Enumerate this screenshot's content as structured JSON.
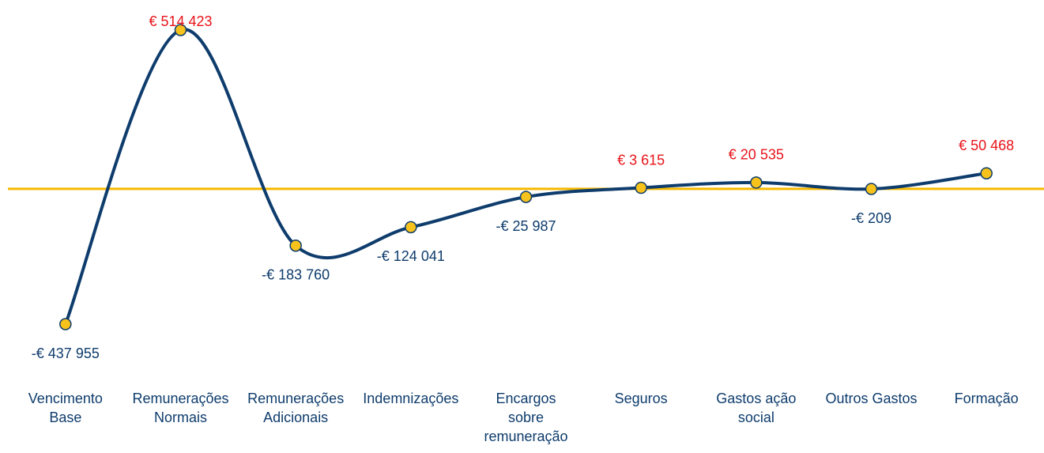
{
  "chart_data": {
    "type": "line",
    "categories": [
      "Vencimento\nBase",
      "Remunerações\nNormais",
      "Remunerações\nAdicionais",
      "Indemnizações",
      "Encargos\nsobre\nremuneração",
      "Seguros",
      "Gastos ação\nsocial",
      "Outros Gastos",
      "Formação"
    ],
    "values": [
      -437955,
      514423,
      -183760,
      -124041,
      -25987,
      3615,
      20535,
      -209,
      50468
    ],
    "value_labels": [
      "-€ 437 955",
      "€ 514 423",
      "-€ 183 760",
      "-€ 124 041",
      "-€ 25 987",
      "€ 3 615",
      "€ 20 535",
      "-€ 209",
      "€ 50 468"
    ],
    "line_color": "#0e3c6c",
    "marker_color": "#f7c21c",
    "zero_line_color": "#f5b800",
    "positive_label_color": "#e8141a",
    "negative_label_color": "#0e3c6c",
    "smooth": true
  }
}
